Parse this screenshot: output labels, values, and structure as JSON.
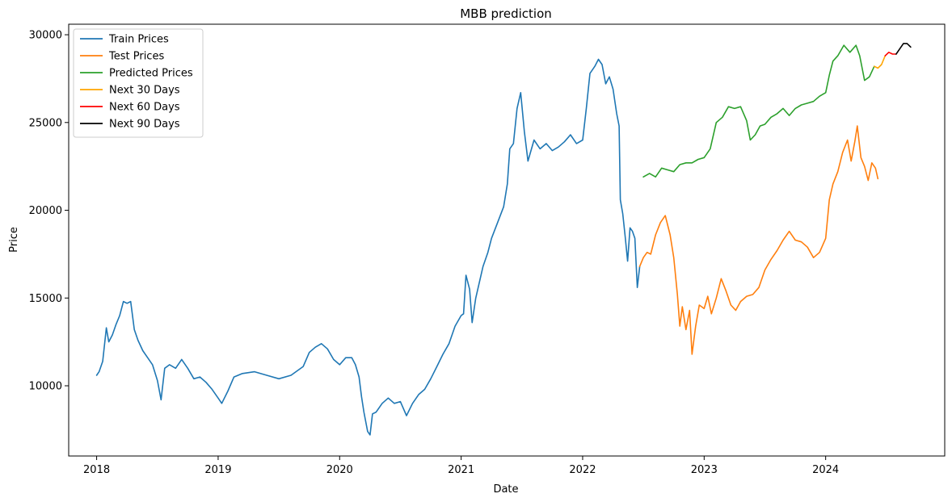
{
  "chart_data": {
    "type": "line",
    "title": "MBB prediction",
    "xlabel": "Date",
    "ylabel": "Price",
    "xlim": [
      2017.77,
      2024.98
    ],
    "ylim": [
      6000,
      30600
    ],
    "x_ticks": [
      2018,
      2019,
      2020,
      2021,
      2022,
      2023,
      2024
    ],
    "x_tick_labels": [
      "2018",
      "2019",
      "2020",
      "2021",
      "2022",
      "2023",
      "2024"
    ],
    "y_ticks": [
      10000,
      15000,
      20000,
      25000,
      30000
    ],
    "y_tick_labels": [
      "10000",
      "15000",
      "20000",
      "25000",
      "30000"
    ],
    "grid": false,
    "legend_position": "upper left",
    "series": [
      {
        "name": "Train Prices",
        "color": "#1f77b4",
        "points": [
          [
            2018.0,
            10600
          ],
          [
            2018.02,
            10800
          ],
          [
            2018.05,
            11400
          ],
          [
            2018.08,
            13300
          ],
          [
            2018.1,
            12500
          ],
          [
            2018.13,
            12900
          ],
          [
            2018.16,
            13500
          ],
          [
            2018.19,
            14000
          ],
          [
            2018.22,
            14800
          ],
          [
            2018.25,
            14700
          ],
          [
            2018.28,
            14800
          ],
          [
            2018.31,
            13200
          ],
          [
            2018.34,
            12600
          ],
          [
            2018.38,
            12000
          ],
          [
            2018.42,
            11600
          ],
          [
            2018.46,
            11200
          ],
          [
            2018.5,
            10300
          ],
          [
            2018.53,
            9200
          ],
          [
            2018.56,
            11000
          ],
          [
            2018.6,
            11200
          ],
          [
            2018.65,
            11000
          ],
          [
            2018.7,
            11500
          ],
          [
            2018.75,
            11000
          ],
          [
            2018.8,
            10400
          ],
          [
            2018.85,
            10500
          ],
          [
            2018.9,
            10200
          ],
          [
            2018.95,
            9800
          ],
          [
            2019.0,
            9300
          ],
          [
            2019.03,
            9000
          ],
          [
            2019.08,
            9700
          ],
          [
            2019.13,
            10500
          ],
          [
            2019.2,
            10700
          ],
          [
            2019.3,
            10800
          ],
          [
            2019.4,
            10600
          ],
          [
            2019.5,
            10400
          ],
          [
            2019.6,
            10600
          ],
          [
            2019.7,
            11100
          ],
          [
            2019.75,
            11900
          ],
          [
            2019.8,
            12200
          ],
          [
            2019.85,
            12400
          ],
          [
            2019.9,
            12100
          ],
          [
            2019.95,
            11500
          ],
          [
            2020.0,
            11200
          ],
          [
            2020.05,
            11600
          ],
          [
            2020.1,
            11600
          ],
          [
            2020.13,
            11200
          ],
          [
            2020.16,
            10500
          ],
          [
            2020.18,
            9400
          ],
          [
            2020.2,
            8500
          ],
          [
            2020.23,
            7400
          ],
          [
            2020.25,
            7200
          ],
          [
            2020.27,
            8400
          ],
          [
            2020.3,
            8500
          ],
          [
            2020.35,
            9000
          ],
          [
            2020.4,
            9300
          ],
          [
            2020.45,
            9000
          ],
          [
            2020.5,
            9100
          ],
          [
            2020.55,
            8300
          ],
          [
            2020.6,
            9000
          ],
          [
            2020.65,
            9500
          ],
          [
            2020.7,
            9800
          ],
          [
            2020.75,
            10400
          ],
          [
            2020.8,
            11100
          ],
          [
            2020.85,
            11800
          ],
          [
            2020.9,
            12400
          ],
          [
            2020.95,
            13400
          ],
          [
            2021.0,
            14000
          ],
          [
            2021.02,
            14100
          ],
          [
            2021.04,
            16300
          ],
          [
            2021.07,
            15500
          ],
          [
            2021.09,
            13600
          ],
          [
            2021.12,
            15000
          ],
          [
            2021.15,
            15900
          ],
          [
            2021.18,
            16800
          ],
          [
            2021.22,
            17600
          ],
          [
            2021.25,
            18400
          ],
          [
            2021.3,
            19300
          ],
          [
            2021.35,
            20200
          ],
          [
            2021.38,
            21500
          ],
          [
            2021.4,
            23500
          ],
          [
            2021.43,
            23800
          ],
          [
            2021.46,
            25800
          ],
          [
            2021.49,
            26700
          ],
          [
            2021.52,
            24500
          ],
          [
            2021.55,
            22800
          ],
          [
            2021.6,
            24000
          ],
          [
            2021.65,
            23500
          ],
          [
            2021.7,
            23800
          ],
          [
            2021.75,
            23400
          ],
          [
            2021.8,
            23600
          ],
          [
            2021.85,
            23900
          ],
          [
            2021.9,
            24300
          ],
          [
            2021.95,
            23800
          ],
          [
            2022.0,
            24000
          ],
          [
            2022.03,
            25800
          ],
          [
            2022.06,
            27800
          ],
          [
            2022.1,
            28200
          ],
          [
            2022.13,
            28600
          ],
          [
            2022.16,
            28300
          ],
          [
            2022.19,
            27200
          ],
          [
            2022.22,
            27600
          ],
          [
            2022.25,
            26900
          ],
          [
            2022.28,
            25500
          ],
          [
            2022.3,
            24800
          ],
          [
            2022.31,
            20600
          ],
          [
            2022.33,
            19800
          ],
          [
            2022.35,
            18500
          ],
          [
            2022.37,
            17100
          ],
          [
            2022.39,
            19000
          ],
          [
            2022.41,
            18800
          ],
          [
            2022.43,
            18400
          ],
          [
            2022.45,
            15600
          ],
          [
            2022.47,
            16800
          ]
        ]
      },
      {
        "name": "Test Prices",
        "color": "#ff7f0e",
        "points": [
          [
            2022.47,
            16800
          ],
          [
            2022.5,
            17300
          ],
          [
            2022.53,
            17600
          ],
          [
            2022.56,
            17500
          ],
          [
            2022.6,
            18600
          ],
          [
            2022.64,
            19300
          ],
          [
            2022.68,
            19700
          ],
          [
            2022.72,
            18600
          ],
          [
            2022.75,
            17300
          ],
          [
            2022.78,
            15200
          ],
          [
            2022.8,
            13400
          ],
          [
            2022.82,
            14500
          ],
          [
            2022.85,
            13200
          ],
          [
            2022.88,
            14300
          ],
          [
            2022.9,
            11800
          ],
          [
            2022.93,
            13400
          ],
          [
            2022.96,
            14600
          ],
          [
            2023.0,
            14400
          ],
          [
            2023.03,
            15100
          ],
          [
            2023.06,
            14100
          ],
          [
            2023.1,
            15000
          ],
          [
            2023.14,
            16100
          ],
          [
            2023.18,
            15400
          ],
          [
            2023.22,
            14600
          ],
          [
            2023.26,
            14300
          ],
          [
            2023.3,
            14800
          ],
          [
            2023.35,
            15100
          ],
          [
            2023.4,
            15200
          ],
          [
            2023.45,
            15600
          ],
          [
            2023.5,
            16600
          ],
          [
            2023.55,
            17200
          ],
          [
            2023.6,
            17700
          ],
          [
            2023.65,
            18300
          ],
          [
            2023.7,
            18800
          ],
          [
            2023.75,
            18300
          ],
          [
            2023.8,
            18200
          ],
          [
            2023.85,
            17900
          ],
          [
            2023.9,
            17300
          ],
          [
            2023.95,
            17600
          ],
          [
            2024.0,
            18400
          ],
          [
            2024.03,
            20600
          ],
          [
            2024.06,
            21500
          ],
          [
            2024.1,
            22200
          ],
          [
            2024.14,
            23300
          ],
          [
            2024.18,
            24000
          ],
          [
            2024.21,
            22800
          ],
          [
            2024.24,
            23900
          ],
          [
            2024.26,
            24800
          ],
          [
            2024.29,
            23000
          ],
          [
            2024.32,
            22500
          ],
          [
            2024.35,
            21700
          ],
          [
            2024.38,
            22700
          ],
          [
            2024.41,
            22400
          ],
          [
            2024.43,
            21800
          ]
        ]
      },
      {
        "name": "Predicted Prices",
        "color": "#2ca02c",
        "points": [
          [
            2022.5,
            21900
          ],
          [
            2022.55,
            22100
          ],
          [
            2022.6,
            21900
          ],
          [
            2022.65,
            22400
          ],
          [
            2022.7,
            22300
          ],
          [
            2022.75,
            22200
          ],
          [
            2022.8,
            22600
          ],
          [
            2022.85,
            22700
          ],
          [
            2022.9,
            22700
          ],
          [
            2022.95,
            22900
          ],
          [
            2023.0,
            23000
          ],
          [
            2023.05,
            23500
          ],
          [
            2023.1,
            25000
          ],
          [
            2023.15,
            25300
          ],
          [
            2023.2,
            25900
          ],
          [
            2023.25,
            25800
          ],
          [
            2023.3,
            25900
          ],
          [
            2023.35,
            25100
          ],
          [
            2023.38,
            24000
          ],
          [
            2023.42,
            24300
          ],
          [
            2023.46,
            24800
          ],
          [
            2023.5,
            24900
          ],
          [
            2023.55,
            25300
          ],
          [
            2023.6,
            25500
          ],
          [
            2023.65,
            25800
          ],
          [
            2023.7,
            25400
          ],
          [
            2023.75,
            25800
          ],
          [
            2023.8,
            26000
          ],
          [
            2023.85,
            26100
          ],
          [
            2023.9,
            26200
          ],
          [
            2023.95,
            26500
          ],
          [
            2024.0,
            26700
          ],
          [
            2024.03,
            27700
          ],
          [
            2024.06,
            28500
          ],
          [
            2024.1,
            28800
          ],
          [
            2024.15,
            29400
          ],
          [
            2024.2,
            29000
          ],
          [
            2024.25,
            29400
          ],
          [
            2024.28,
            28800
          ],
          [
            2024.32,
            27400
          ],
          [
            2024.36,
            27600
          ],
          [
            2024.4,
            28200
          ]
        ]
      },
      {
        "name": "Next 30 Days",
        "color": "#ffa500",
        "points": [
          [
            2024.4,
            28200
          ],
          [
            2024.43,
            28100
          ],
          [
            2024.46,
            28300
          ],
          [
            2024.49,
            28800
          ]
        ]
      },
      {
        "name": "Next 60 Days",
        "color": "#ff0000",
        "points": [
          [
            2024.49,
            28800
          ],
          [
            2024.52,
            29000
          ],
          [
            2024.55,
            28900
          ],
          [
            2024.58,
            28900
          ]
        ]
      },
      {
        "name": "Next 90 Days",
        "color": "#000000",
        "points": [
          [
            2024.58,
            28900
          ],
          [
            2024.61,
            29200
          ],
          [
            2024.64,
            29500
          ],
          [
            2024.67,
            29500
          ],
          [
            2024.7,
            29300
          ]
        ]
      }
    ]
  }
}
